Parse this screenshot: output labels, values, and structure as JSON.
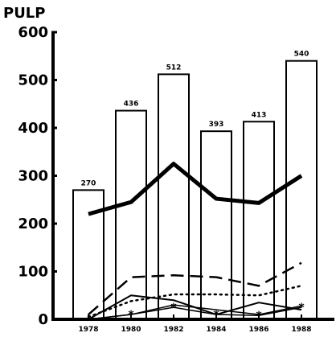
{
  "chart_data": {
    "type": "bar",
    "ylabel": "PULP",
    "ylim": [
      0,
      600
    ],
    "yticks": [
      0,
      100,
      200,
      300,
      400,
      500,
      600
    ],
    "grid": false,
    "categories": [
      "1978",
      "1980",
      "1982",
      "1984",
      "1986",
      "1988"
    ],
    "bars": {
      "values": [
        270,
        436,
        512,
        393,
        413,
        540
      ],
      "data_labels": [
        "270",
        "436",
        "512",
        "393",
        "413",
        "540"
      ],
      "fill": "#ffffff",
      "stroke": "#000000"
    },
    "series": [
      {
        "style": "thick-solid",
        "values": [
          220,
          245,
          325,
          252,
          243,
          300
        ]
      },
      {
        "style": "dashed",
        "values": [
          10,
          88,
          92,
          88,
          70,
          118
        ]
      },
      {
        "style": "dotted",
        "values": [
          5,
          38,
          52,
          52,
          50,
          70
        ]
      },
      {
        "style": "thin-solid",
        "values": [
          0,
          50,
          40,
          10,
          35,
          20
        ]
      },
      {
        "style": "thin-solid-2",
        "values": [
          0,
          10,
          30,
          20,
          10,
          28
        ]
      },
      {
        "style": "asterisk",
        "values": [
          0,
          10,
          25,
          10,
          8,
          25
        ]
      }
    ]
  }
}
